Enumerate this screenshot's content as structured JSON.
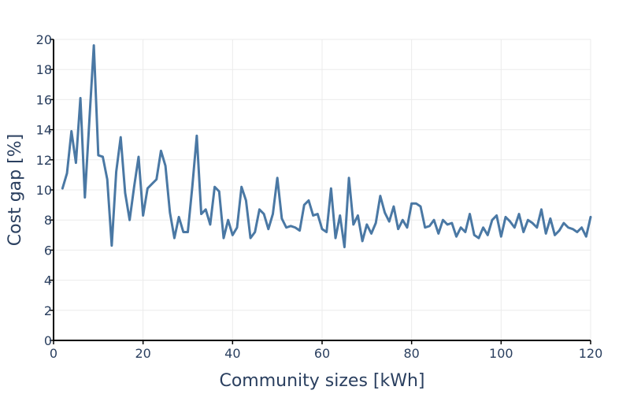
{
  "chart_data": {
    "type": "line",
    "title": "",
    "xlabel": "Community sizes [kWh]",
    "ylabel": "Cost gap [%]",
    "xlim": [
      0,
      120
    ],
    "ylim": [
      0,
      20
    ],
    "x_ticks": [
      0,
      20,
      40,
      60,
      80,
      100,
      120
    ],
    "y_ticks": [
      0,
      2,
      4,
      6,
      8,
      10,
      12,
      14,
      16,
      18,
      20
    ],
    "grid": true,
    "line_color": "#4a78a4",
    "series": [
      {
        "x": [
          2,
          3,
          4,
          5,
          6,
          7,
          8,
          9,
          10,
          11,
          12,
          13,
          14,
          15,
          16,
          17,
          18,
          19,
          20,
          21,
          22,
          23,
          24,
          25,
          26,
          27,
          28,
          29,
          30,
          31,
          32,
          33,
          34,
          35,
          36,
          37,
          38,
          39,
          40,
          41,
          42,
          43,
          44,
          45,
          46,
          47,
          48,
          49,
          50,
          51,
          52,
          53,
          54,
          55,
          56,
          57,
          58,
          59,
          60,
          61,
          62,
          63,
          64,
          65,
          66,
          67,
          68,
          69,
          70,
          71,
          72,
          73,
          74,
          75,
          76,
          77,
          78,
          79,
          80,
          81,
          82,
          83,
          84,
          85,
          86,
          87,
          88,
          89,
          90,
          91,
          92,
          93,
          94,
          95,
          96,
          97,
          98,
          99,
          100,
          101,
          102,
          103,
          104,
          105,
          106,
          107,
          108,
          109,
          110,
          111,
          112,
          113,
          114,
          115,
          116,
          117,
          118,
          119,
          120
        ],
        "values": [
          10.1,
          11.1,
          13.9,
          11.8,
          16.1,
          9.5,
          14.6,
          19.6,
          12.3,
          12.2,
          10.7,
          6.3,
          11.2,
          13.5,
          9.8,
          8.0,
          10.2,
          12.2,
          8.3,
          10.1,
          10.4,
          10.7,
          12.6,
          11.6,
          8.5,
          6.8,
          8.2,
          7.2,
          7.2,
          10.2,
          13.6,
          8.4,
          8.7,
          7.7,
          10.2,
          9.9,
          6.8,
          8.0,
          7.0,
          7.5,
          10.2,
          9.3,
          6.8,
          7.2,
          8.7,
          8.4,
          7.4,
          8.4,
          10.8,
          8.1,
          7.5,
          7.6,
          7.5,
          7.3,
          9.0,
          9.3,
          8.3,
          8.4,
          7.4,
          7.2,
          10.1,
          6.8,
          8.3,
          6.2,
          10.8,
          7.7,
          8.3,
          6.6,
          7.7,
          7.1,
          7.8,
          9.6,
          8.5,
          7.9,
          8.9,
          7.4,
          8.0,
          7.5,
          9.1,
          9.1,
          8.9,
          7.5,
          7.6,
          8.0,
          7.1,
          8.0,
          7.7,
          7.8,
          6.9,
          7.5,
          7.2,
          8.4,
          7.0,
          6.8,
          7.5,
          7.0,
          8.0,
          8.3,
          6.9,
          8.2,
          7.9,
          7.5,
          8.4,
          7.2,
          8.0,
          7.8,
          7.5,
          8.7,
          7.1,
          8.1,
          7.0,
          7.3,
          7.8,
          7.5,
          7.4,
          7.2,
          7.5,
          6.9,
          8.2
        ]
      }
    ]
  }
}
